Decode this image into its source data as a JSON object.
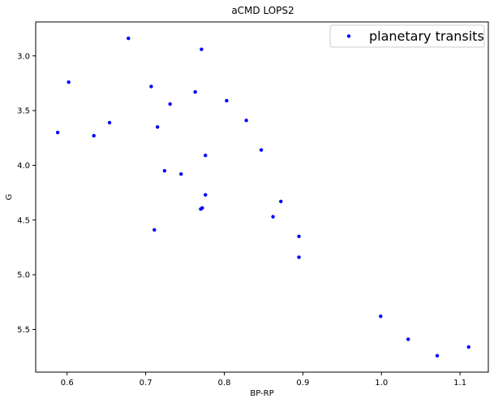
{
  "chart_data": {
    "type": "scatter",
    "title": "aCMD LOPS2",
    "xlabel": "BP-RP",
    "ylabel": "G",
    "xlim": [
      0.56,
      1.136
    ],
    "ylim": [
      5.89,
      2.69
    ],
    "y_inverted": true,
    "grid": false,
    "legend_position": "upper-right",
    "x_ticks": [
      "0.6",
      "0.7",
      "0.8",
      "0.9",
      "1.0",
      "1.1"
    ],
    "y_ticks": [
      "3.0",
      "3.5",
      "4.0",
      "4.5",
      "5.0",
      "5.5"
    ],
    "series": [
      {
        "name": "planetary transits",
        "color": "#0000ff",
        "marker": "dot",
        "points": [
          {
            "x": 0.678,
            "y": 2.84
          },
          {
            "x": 0.771,
            "y": 2.94
          },
          {
            "x": 0.602,
            "y": 3.24
          },
          {
            "x": 0.707,
            "y": 3.28
          },
          {
            "x": 0.763,
            "y": 3.33
          },
          {
            "x": 0.731,
            "y": 3.44
          },
          {
            "x": 0.803,
            "y": 3.41
          },
          {
            "x": 0.654,
            "y": 3.61
          },
          {
            "x": 0.715,
            "y": 3.65
          },
          {
            "x": 0.828,
            "y": 3.59
          },
          {
            "x": 0.588,
            "y": 3.7
          },
          {
            "x": 0.634,
            "y": 3.73
          },
          {
            "x": 0.847,
            "y": 3.86
          },
          {
            "x": 0.776,
            "y": 3.91
          },
          {
            "x": 0.724,
            "y": 4.05
          },
          {
            "x": 0.745,
            "y": 4.08
          },
          {
            "x": 0.776,
            "y": 4.27
          },
          {
            "x": 0.872,
            "y": 4.33
          },
          {
            "x": 0.772,
            "y": 4.39
          },
          {
            "x": 0.77,
            "y": 4.4
          },
          {
            "x": 0.862,
            "y": 4.47
          },
          {
            "x": 0.711,
            "y": 4.59
          },
          {
            "x": 0.895,
            "y": 4.65
          },
          {
            "x": 0.895,
            "y": 4.84
          },
          {
            "x": 0.999,
            "y": 5.38
          },
          {
            "x": 1.034,
            "y": 5.59
          },
          {
            "x": 1.111,
            "y": 5.66
          },
          {
            "x": 1.071,
            "y": 5.74
          }
        ]
      }
    ]
  }
}
